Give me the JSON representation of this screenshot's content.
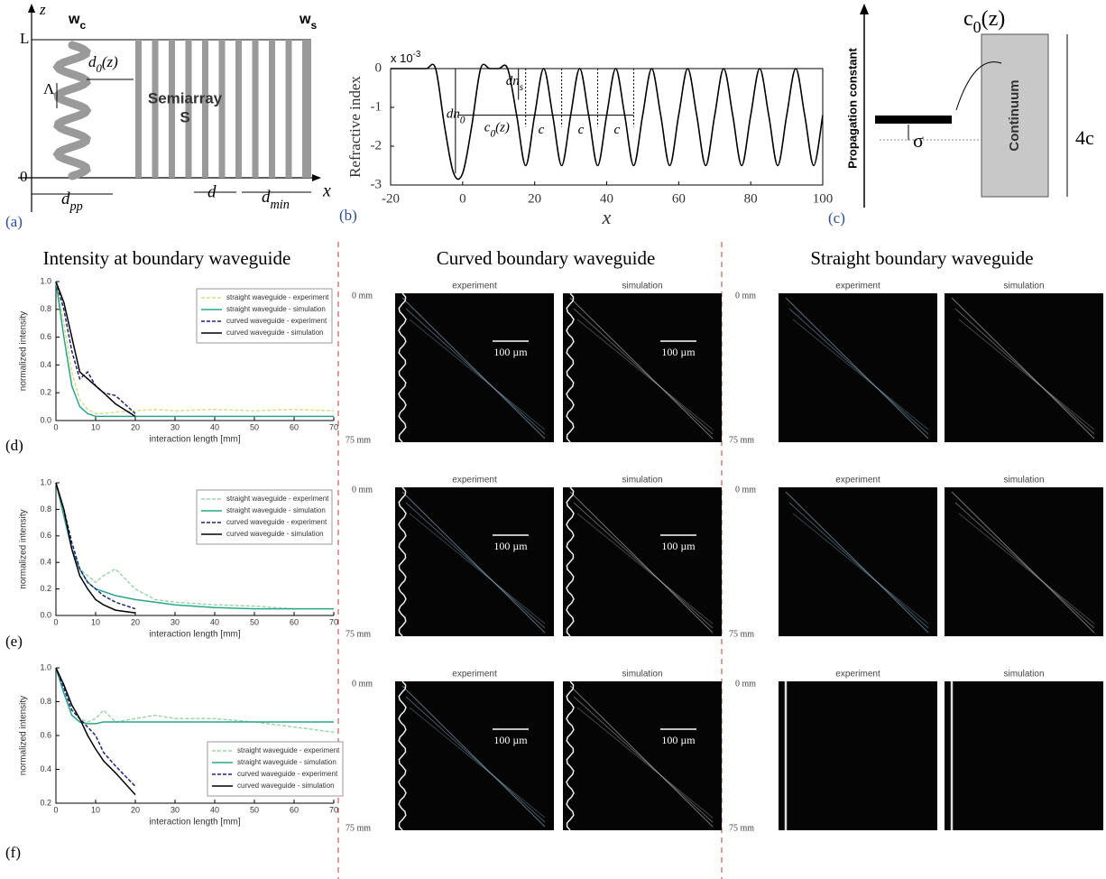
{
  "panel_labels": [
    "(a)",
    "(b)",
    "(c)",
    "(d)",
    "(e)",
    "(f)"
  ],
  "panel_a": {
    "axis_z": "z",
    "axis_x": "x",
    "top": "L",
    "origin": "0",
    "w_curved": {
      "base": "w",
      "sub": "c"
    },
    "w_straight": {
      "base": "w",
      "sub": "s"
    },
    "offset": {
      "base": "d",
      "sub": "0",
      "tail": "(z)"
    },
    "period": "Λ",
    "array": [
      "Semiarray",
      "S"
    ],
    "amplitude": {
      "base": "d",
      "sub": "pp"
    },
    "spacing": "d",
    "min_spacing": {
      "base": "d",
      "sub": "min"
    }
  },
  "panel_c": {
    "coupling": {
      "base": "c",
      "sub": "0",
      "tail": "(z)"
    },
    "axis": "Propagation constant",
    "detuning": "σ",
    "continuum": "Continuum",
    "width": "4c"
  },
  "columns": [
    "Intensity at boundary waveguide",
    "Curved boundary waveguide",
    "Straight boundary waveguide"
  ],
  "images": [
    {
      "rows": [
        {
          "top": "0 mm",
          "bottom": "75 mm",
          "panels": [
            {
              "label": "experiment",
              "scale": "100 µm"
            },
            {
              "label": "simulation",
              "scale": "100 µm"
            }
          ]
        },
        {
          "top": "0 mm",
          "bottom": "75 mm",
          "panels": [
            {
              "label": "experiment",
              "scale": "100 µm"
            },
            {
              "label": "simulation",
              "scale": "100 µm"
            }
          ]
        },
        {
          "top": "0 mm",
          "bottom": "75 mm",
          "panels": [
            {
              "label": "experiment",
              "scale": "100 µm"
            },
            {
              "label": "simulation",
              "scale": "100 µm"
            }
          ]
        }
      ]
    },
    {
      "rows": [
        {
          "top": "0 mm",
          "bottom": "75 mm",
          "panels": [
            {
              "label": "experiment"
            },
            {
              "label": "simulation"
            }
          ]
        },
        {
          "top": "0 mm",
          "bottom": "75 mm",
          "panels": [
            {
              "label": "experiment"
            },
            {
              "label": "simulation"
            }
          ]
        },
        {
          "top": "0 mm",
          "bottom": "75 mm",
          "panels": [
            {
              "label": "experiment"
            },
            {
              "label": "simulation"
            }
          ]
        }
      ]
    }
  ],
  "chart_data": [
    {
      "type": "line",
      "y_label": "Refractive index",
      "x_label": "x",
      "scale_note": {
        "base": "x 10",
        "sup": "-3"
      },
      "annotations": [
        {
          "base": "dn",
          "sub": "0"
        },
        {
          "base": "dn",
          "sub": "s"
        },
        {
          "base": "c",
          "sub": "0",
          "tail": "(z)"
        },
        "c",
        "c",
        "c"
      ],
      "x": [
        -20,
        -17.5,
        -15,
        -12.5,
        -10,
        -7.5,
        -5,
        -2.5,
        0,
        2.5,
        5,
        7.5,
        10,
        12.5,
        15,
        17.5,
        20,
        22.5,
        25,
        27.5,
        30,
        32.5,
        35,
        37.5,
        40,
        42.5,
        45,
        47.5,
        50,
        52.5,
        55,
        57.5,
        60,
        62.5,
        65,
        67.5,
        70,
        72.5,
        75,
        77.5,
        80,
        82.5,
        85,
        87.5,
        90,
        92.5,
        95,
        97.5,
        100
      ],
      "values": [
        0,
        0,
        0,
        0,
        0,
        0,
        -1.5,
        -2.7,
        -2.7,
        -1.5,
        0,
        0,
        0,
        0,
        -1.2,
        -2.5,
        -1.2,
        0,
        -1.2,
        -2.5,
        -1.2,
        0,
        -1.2,
        -2.5,
        -1.2,
        0,
        -1.2,
        -2.5,
        -1.2,
        0,
        -1.2,
        -2.5,
        -1.2,
        0,
        -1.2,
        -2.5,
        -1.2,
        0,
        -1.2,
        -2.5,
        -1.2,
        0,
        -1.2,
        -2.5,
        -1.2,
        0,
        -1.2,
        -2.5,
        -1.2
      ],
      "color": "#000000",
      "xlim": [
        -20,
        100
      ],
      "ylim": [
        -3,
        0
      ],
      "xticks": [
        -20,
        0,
        20,
        40,
        60,
        80,
        100
      ],
      "yticks": [
        -3,
        -2,
        -1,
        0
      ]
    },
    {
      "type": "line",
      "y_label": "normalized intensity",
      "x_label": "interaction length [mm]",
      "legend": "upper right",
      "x": [
        0,
        2,
        4,
        6,
        8,
        10,
        12,
        15,
        20,
        25,
        30,
        40,
        50,
        60,
        70
      ],
      "xlim": [
        0,
        70
      ],
      "ylim": [
        0,
        1
      ],
      "xticks": [
        0,
        10,
        20,
        30,
        40,
        50,
        60,
        70
      ],
      "yticks": [
        {
          "value": 0,
          "label": "0.0"
        },
        {
          "value": 0.2,
          "label": "0.2"
        },
        {
          "value": 0.4,
          "label": "0.4"
        },
        {
          "value": 0.6,
          "label": "0.6"
        },
        {
          "value": 0.8,
          "label": "0.8"
        },
        {
          "value": 1,
          "label": "1.0"
        }
      ],
      "series": [
        {
          "name": "straight waveguide - experiment",
          "color": "#d4e08a",
          "dashed": true,
          "values": [
            1.0,
            0.7,
            0.35,
            0.15,
            0.08,
            0.05,
            0.05,
            0.06,
            0.07,
            0.08,
            0.07,
            0.08,
            0.07,
            0.08,
            0.07
          ]
        },
        {
          "name": "straight waveguide - simulation",
          "color": "#2aa58a",
          "dashed": false,
          "values": [
            1.0,
            0.6,
            0.25,
            0.1,
            0.05,
            0.03,
            0.03,
            0.03,
            0.03,
            0.03,
            0.03,
            0.03,
            0.03,
            0.03,
            0.03
          ]
        },
        {
          "name": "curved waveguide - experiment",
          "color": "#1a237e",
          "dashed": true,
          "values": [
            1.0,
            0.8,
            0.5,
            0.3,
            0.35,
            0.25,
            0.2,
            0.18,
            0.05,
            null,
            null,
            null,
            null,
            null,
            null
          ]
        },
        {
          "name": "curved waveguide - simulation",
          "color": "#000000",
          "dashed": false,
          "values": [
            1.0,
            0.85,
            0.6,
            0.35,
            0.3,
            0.25,
            0.2,
            0.12,
            0.03,
            null,
            null,
            null,
            null,
            null,
            null
          ]
        }
      ]
    },
    {
      "type": "line",
      "y_label": "normalized intensity",
      "x_label": "interaction length [mm]",
      "legend": "upper right",
      "x": [
        0,
        2,
        4,
        6,
        8,
        10,
        12,
        15,
        20,
        25,
        30,
        40,
        50,
        60,
        70
      ],
      "xlim": [
        0,
        70
      ],
      "ylim": [
        0,
        1
      ],
      "xticks": [
        0,
        10,
        20,
        30,
        40,
        50,
        60,
        70
      ],
      "yticks": [
        {
          "value": 0,
          "label": "0.0"
        },
        {
          "value": 0.2,
          "label": "0.2"
        },
        {
          "value": 0.4,
          "label": "0.4"
        },
        {
          "value": 0.6,
          "label": "0.6"
        },
        {
          "value": 0.8,
          "label": "0.8"
        },
        {
          "value": 1,
          "label": "1.0"
        }
      ],
      "series": [
        {
          "name": "straight waveguide - experiment",
          "color": "#9fd6a8",
          "dashed": true,
          "values": [
            1.0,
            0.75,
            0.5,
            0.35,
            0.3,
            0.25,
            0.3,
            0.35,
            0.2,
            0.12,
            0.1,
            0.08,
            0.07,
            0.05,
            0.05
          ]
        },
        {
          "name": "straight waveguide - simulation",
          "color": "#2aa58a",
          "dashed": false,
          "values": [
            1.0,
            0.75,
            0.5,
            0.35,
            0.25,
            0.2,
            0.18,
            0.15,
            0.12,
            0.1,
            0.08,
            0.06,
            0.05,
            0.05,
            0.05
          ]
        },
        {
          "name": "curved waveguide - experiment",
          "color": "#1a237e",
          "dashed": true,
          "values": [
            1.0,
            0.8,
            0.55,
            0.35,
            0.25,
            0.2,
            0.15,
            0.1,
            0.05,
            null,
            null,
            null,
            null,
            null,
            null
          ]
        },
        {
          "name": "curved waveguide - simulation",
          "color": "#000000",
          "dashed": false,
          "values": [
            1.0,
            0.8,
            0.5,
            0.3,
            0.2,
            0.12,
            0.08,
            0.04,
            0.02,
            null,
            null,
            null,
            null,
            null,
            null
          ]
        }
      ]
    },
    {
      "type": "line",
      "y_label": "normalized intensity",
      "x_label": "interaction length [mm]",
      "legend": "lower right",
      "x": [
        0,
        2,
        4,
        6,
        8,
        10,
        12,
        15,
        20,
        25,
        30,
        40,
        50,
        60,
        70
      ],
      "xlim": [
        0,
        70
      ],
      "ylim": [
        0.2,
        1
      ],
      "xticks": [
        0,
        10,
        20,
        30,
        40,
        50,
        60,
        70
      ],
      "yticks": [
        0.2,
        0.4,
        0.6,
        0.8,
        {
          "value": 1,
          "label": "1.0"
        }
      ],
      "series": [
        {
          "name": "straight waveguide - experiment",
          "color": "#9fd6a8",
          "dashed": true,
          "values": [
            1.0,
            0.85,
            0.75,
            0.7,
            0.68,
            0.7,
            0.75,
            0.68,
            0.7,
            0.72,
            0.7,
            0.7,
            0.68,
            0.65,
            0.62
          ]
        },
        {
          "name": "straight waveguide - simulation",
          "color": "#2aa58a",
          "dashed": false,
          "values": [
            1.0,
            0.85,
            0.72,
            0.68,
            0.67,
            0.67,
            0.68,
            0.68,
            0.68,
            0.68,
            0.68,
            0.68,
            0.68,
            0.68,
            0.68
          ]
        },
        {
          "name": "curved waveguide - experiment",
          "color": "#1a237e",
          "dashed": true,
          "values": [
            1.0,
            0.88,
            0.75,
            0.7,
            0.65,
            0.6,
            0.5,
            0.42,
            0.3,
            null,
            null,
            null,
            null,
            null,
            null
          ]
        },
        {
          "name": "curved waveguide - simulation",
          "color": "#000000",
          "dashed": false,
          "values": [
            1.0,
            0.9,
            0.78,
            0.7,
            0.6,
            0.52,
            0.45,
            0.38,
            0.25,
            null,
            null,
            null,
            null,
            null,
            null
          ]
        }
      ]
    }
  ]
}
